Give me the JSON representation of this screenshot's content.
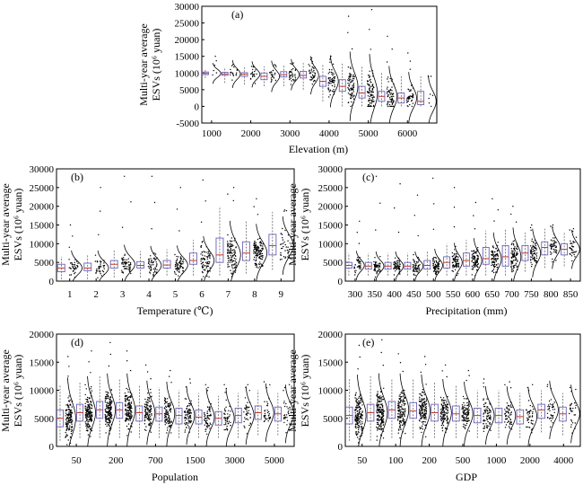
{
  "chart_data": [
    {
      "id": "a",
      "type": "box-violin",
      "panel_label": "(a)",
      "xlabel": "Elevation (m)",
      "ylabel_line1": "Multi-year average",
      "ylabel_line2": "ESVs (10⁶ yuan)",
      "ylim": [
        -5000,
        30000
      ],
      "yticks": [
        -5000,
        0,
        5000,
        10000,
        15000,
        20000,
        25000,
        30000
      ],
      "xtick_labels": [
        "1000",
        "2000",
        "3000",
        "4000",
        "5000",
        "6000"
      ],
      "groups": [
        {
          "q1": 9500,
          "median": 9900,
          "q3": 10300,
          "lo": 8500,
          "hi": 11200,
          "n": 6,
          "spread": 1200,
          "max": 15000
        },
        {
          "q1": 9300,
          "median": 9700,
          "q3": 10200,
          "lo": 7000,
          "hi": 11500,
          "n": 18,
          "spread": 1600,
          "max": 12500
        },
        {
          "q1": 9000,
          "median": 9600,
          "q3": 10100,
          "lo": 6500,
          "hi": 11700,
          "n": 20,
          "spread": 1500,
          "max": 12000
        },
        {
          "q1": 8000,
          "median": 9000,
          "q3": 10000,
          "lo": 6000,
          "hi": 12000,
          "n": 24,
          "spread": 1800,
          "max": 12500
        },
        {
          "q1": 8800,
          "median": 9500,
          "q3": 10400,
          "lo": 6000,
          "hi": 12500,
          "n": 34,
          "spread": 1800,
          "max": 13000
        },
        {
          "q1": 8500,
          "median": 9300,
          "q3": 10500,
          "lo": 5000,
          "hi": 13000,
          "n": 40,
          "spread": 2200,
          "max": 14500
        },
        {
          "q1": 6000,
          "median": 7500,
          "q3": 9000,
          "lo": 1500,
          "hi": 12500,
          "n": 60,
          "spread": 3000,
          "max": 15000
        },
        {
          "q1": 4500,
          "median": 6000,
          "q3": 8000,
          "lo": 0,
          "hi": 13000,
          "n": 80,
          "spread": 4000,
          "max": 27000
        },
        {
          "q1": 2500,
          "median": 4000,
          "q3": 6000,
          "lo": 0,
          "hi": 12000,
          "n": 90,
          "spread": 4500,
          "max": 29000
        },
        {
          "q1": 1500,
          "median": 3000,
          "q3": 4500,
          "lo": 0,
          "hi": 10000,
          "n": 70,
          "spread": 3500,
          "max": 21000
        },
        {
          "q1": 1000,
          "median": 2500,
          "q3": 4000,
          "lo": 0,
          "hi": 9000,
          "n": 45,
          "spread": 3000,
          "max": 16000
        },
        {
          "q1": 500,
          "median": 1500,
          "q3": 4500,
          "lo": 0,
          "hi": 9000,
          "n": 8,
          "spread": 3000,
          "max": 9000
        }
      ]
    },
    {
      "id": "b",
      "type": "box-violin",
      "panel_label": "(b)",
      "xlabel": "Temperature (℃)",
      "ylabel_line1": "Multi-year average",
      "ylabel_line2": "ESVs (10⁶ yuan)",
      "ylim": [
        0,
        30000
      ],
      "yticks": [
        0,
        5000,
        10000,
        15000,
        20000,
        25000,
        30000
      ],
      "xtick_labels": [
        "1",
        "2",
        "3",
        "4",
        "5",
        "6",
        "7",
        "8",
        "9"
      ],
      "groups": [
        {
          "q1": 2500,
          "median": 3500,
          "q3": 4500,
          "lo": 500,
          "hi": 6500,
          "n": 40,
          "spread": 1800,
          "max": 15000
        },
        {
          "q1": 2800,
          "median": 3500,
          "q3": 4800,
          "lo": 500,
          "hi": 7000,
          "n": 45,
          "spread": 1800,
          "max": 25000
        },
        {
          "q1": 3500,
          "median": 4500,
          "q3": 5500,
          "lo": 1000,
          "hi": 8500,
          "n": 60,
          "spread": 2000,
          "max": 28000
        },
        {
          "q1": 3500,
          "median": 4200,
          "q3": 5200,
          "lo": 1000,
          "hi": 8000,
          "n": 60,
          "spread": 2000,
          "max": 28000
        },
        {
          "q1": 3500,
          "median": 4300,
          "q3": 5500,
          "lo": 1500,
          "hi": 8500,
          "n": 70,
          "spread": 2000,
          "max": 25000
        },
        {
          "q1": 4500,
          "median": 5500,
          "q3": 7500,
          "lo": 1500,
          "hi": 11000,
          "n": 80,
          "spread": 2500,
          "max": 27000
        },
        {
          "q1": 5000,
          "median": 7000,
          "q3": 11500,
          "lo": 1500,
          "hi": 20000,
          "n": 110,
          "spread": 3500,
          "max": 25000
        },
        {
          "q1": 5500,
          "median": 7500,
          "q3": 10500,
          "lo": 2000,
          "hi": 16000,
          "n": 130,
          "spread": 3000,
          "max": 22000
        },
        {
          "q1": 7000,
          "median": 9500,
          "q3": 12500,
          "lo": 3000,
          "hi": 18500,
          "n": 40,
          "spread": 3000,
          "max": 19000
        }
      ]
    },
    {
      "id": "c",
      "type": "box-violin",
      "panel_label": "(c)",
      "xlabel": "Precipitation (mm)",
      "ylabel_line1": "Multi-year average",
      "ylabel_line2": "ESVs (10⁶ yuan)",
      "ylim": [
        0,
        30000
      ],
      "yticks": [
        0,
        5000,
        10000,
        15000,
        20000,
        25000,
        30000
      ],
      "xtick_labels": [
        "300",
        "350",
        "400",
        "450",
        "500",
        "550",
        "600",
        "650",
        "700",
        "750",
        "800",
        "850"
      ],
      "groups": [
        {
          "q1": 3500,
          "median": 4200,
          "q3": 5000,
          "lo": 1500,
          "hi": 7500,
          "n": 40,
          "spread": 1500,
          "max": 16000
        },
        {
          "q1": 3200,
          "median": 4000,
          "q3": 5000,
          "lo": 1500,
          "hi": 7500,
          "n": 55,
          "spread": 1500,
          "max": 28000
        },
        {
          "q1": 3200,
          "median": 4000,
          "q3": 5000,
          "lo": 1500,
          "hi": 7500,
          "n": 60,
          "spread": 1500,
          "max": 26000
        },
        {
          "q1": 3200,
          "median": 4000,
          "q3": 5000,
          "lo": 1500,
          "hi": 7500,
          "n": 65,
          "spread": 1500,
          "max": 23000
        },
        {
          "q1": 3200,
          "median": 4200,
          "q3": 5500,
          "lo": 1500,
          "hi": 8000,
          "n": 75,
          "spread": 1700,
          "max": 27500
        },
        {
          "q1": 3500,
          "median": 5000,
          "q3": 6500,
          "lo": 1500,
          "hi": 10000,
          "n": 80,
          "spread": 2000,
          "max": 25000
        },
        {
          "q1": 4000,
          "median": 5500,
          "q3": 7500,
          "lo": 1500,
          "hi": 11000,
          "n": 85,
          "spread": 2300,
          "max": 21000
        },
        {
          "q1": 4500,
          "median": 6000,
          "q3": 9000,
          "lo": 1500,
          "hi": 13500,
          "n": 90,
          "spread": 2700,
          "max": 22000
        },
        {
          "q1": 4000,
          "median": 6500,
          "q3": 9500,
          "lo": 1500,
          "hi": 14000,
          "n": 90,
          "spread": 3000,
          "max": 20000
        },
        {
          "q1": 5500,
          "median": 7500,
          "q3": 9500,
          "lo": 2500,
          "hi": 13000,
          "n": 70,
          "spread": 2500,
          "max": 15000
        },
        {
          "q1": 7000,
          "median": 9000,
          "q3": 10500,
          "lo": 3500,
          "hi": 14000,
          "n": 50,
          "spread": 2200,
          "max": 15000
        },
        {
          "q1": 7000,
          "median": 8500,
          "q3": 10000,
          "lo": 4000,
          "hi": 13000,
          "n": 35,
          "spread": 2000,
          "max": 14000
        }
      ]
    },
    {
      "id": "d",
      "type": "box-violin",
      "panel_label": "(d)",
      "xlabel": "Population",
      "ylabel_line1": "Multi-year average",
      "ylabel_line2": "ESVs (10⁶ yuan)",
      "ylim": [
        0,
        20000
      ],
      "yticks": [
        0,
        5000,
        10000,
        15000,
        20000
      ],
      "xtick_labels": [
        "50",
        "200",
        "700",
        "1500",
        "3000",
        "5000"
      ],
      "groups": [
        {
          "q1": 3500,
          "median": 5000,
          "q3": 6500,
          "lo": 1000,
          "hi": 11000,
          "n": 140,
          "spread": 2800,
          "max": 16000
        },
        {
          "q1": 4500,
          "median": 6000,
          "q3": 7500,
          "lo": 1500,
          "hi": 11500,
          "n": 160,
          "spread": 2500,
          "max": 17000
        },
        {
          "q1": 5000,
          "median": 6500,
          "q3": 8000,
          "lo": 1500,
          "hi": 12500,
          "n": 170,
          "spread": 2500,
          "max": 18500
        },
        {
          "q1": 5000,
          "median": 6500,
          "q3": 7800,
          "lo": 1500,
          "hi": 12000,
          "n": 150,
          "spread": 2500,
          "max": 17000
        },
        {
          "q1": 4500,
          "median": 6000,
          "q3": 7200,
          "lo": 1500,
          "hi": 11000,
          "n": 120,
          "spread": 2200,
          "max": 14500
        },
        {
          "q1": 4500,
          "median": 5800,
          "q3": 7000,
          "lo": 1500,
          "hi": 10500,
          "n": 100,
          "spread": 2200,
          "max": 13500
        },
        {
          "q1": 4000,
          "median": 5500,
          "q3": 6800,
          "lo": 1500,
          "hi": 10000,
          "n": 80,
          "spread": 2000,
          "max": 12000
        },
        {
          "q1": 4000,
          "median": 5200,
          "q3": 6500,
          "lo": 1500,
          "hi": 9500,
          "n": 60,
          "spread": 2000,
          "max": 11000
        },
        {
          "q1": 3800,
          "median": 5000,
          "q3": 6200,
          "lo": 1500,
          "hi": 9000,
          "n": 45,
          "spread": 2000,
          "max": 11000
        },
        {
          "q1": 4200,
          "median": 5500,
          "q3": 6800,
          "lo": 1500,
          "hi": 9500,
          "n": 40,
          "spread": 2000,
          "max": 11000
        },
        {
          "q1": 4800,
          "median": 6000,
          "q3": 7200,
          "lo": 2000,
          "hi": 10000,
          "n": 35,
          "spread": 2000,
          "max": 11500
        },
        {
          "q1": 4500,
          "median": 5800,
          "q3": 7000,
          "lo": 2000,
          "hi": 9500,
          "n": 30,
          "spread": 2000,
          "max": 11000
        }
      ]
    },
    {
      "id": "e",
      "type": "box-violin",
      "panel_label": "(e)",
      "xlabel": "GDP",
      "ylabel_line1": "Multi-year average",
      "ylabel_line2": "ESVs (10⁶ yuan)",
      "ylim": [
        0,
        20000
      ],
      "yticks": [
        0,
        5000,
        10000,
        15000,
        20000
      ],
      "xtick_labels": [
        "50",
        "100",
        "200",
        "500",
        "1000",
        "2000",
        "4000"
      ],
      "groups": [
        {
          "q1": 4000,
          "median": 5500,
          "q3": 7000,
          "lo": 1000,
          "hi": 12000,
          "n": 170,
          "spread": 2800,
          "max": 18000
        },
        {
          "q1": 4500,
          "median": 6000,
          "q3": 7500,
          "lo": 1000,
          "hi": 12500,
          "n": 170,
          "spread": 2700,
          "max": 19000
        },
        {
          "q1": 5000,
          "median": 6500,
          "q3": 8000,
          "lo": 1500,
          "hi": 12000,
          "n": 150,
          "spread": 2500,
          "max": 16500
        },
        {
          "q1": 5000,
          "median": 6300,
          "q3": 7800,
          "lo": 1500,
          "hi": 12000,
          "n": 140,
          "spread": 2500,
          "max": 16000
        },
        {
          "q1": 4500,
          "median": 6000,
          "q3": 7500,
          "lo": 1500,
          "hi": 11500,
          "n": 120,
          "spread": 2300,
          "max": 14500
        },
        {
          "q1": 4500,
          "median": 5800,
          "q3": 7200,
          "lo": 1500,
          "hi": 11000,
          "n": 100,
          "spread": 2200,
          "max": 13500
        },
        {
          "q1": 4200,
          "median": 5500,
          "q3": 6800,
          "lo": 1500,
          "hi": 10000,
          "n": 80,
          "spread": 2000,
          "max": 12000
        },
        {
          "q1": 4200,
          "median": 5500,
          "q3": 6800,
          "lo": 1500,
          "hi": 10000,
          "n": 60,
          "spread": 2000,
          "max": 11500
        },
        {
          "q1": 4000,
          "median": 5300,
          "q3": 6500,
          "lo": 1500,
          "hi": 9500,
          "n": 45,
          "spread": 2000,
          "max": 11000
        },
        {
          "q1": 5000,
          "median": 6500,
          "q3": 7500,
          "lo": 2500,
          "hi": 10000,
          "n": 40,
          "spread": 2000,
          "max": 11000
        },
        {
          "q1": 4500,
          "median": 5800,
          "q3": 7000,
          "lo": 2000,
          "hi": 9500,
          "n": 30,
          "spread": 2000,
          "max": 10500
        }
      ]
    }
  ]
}
